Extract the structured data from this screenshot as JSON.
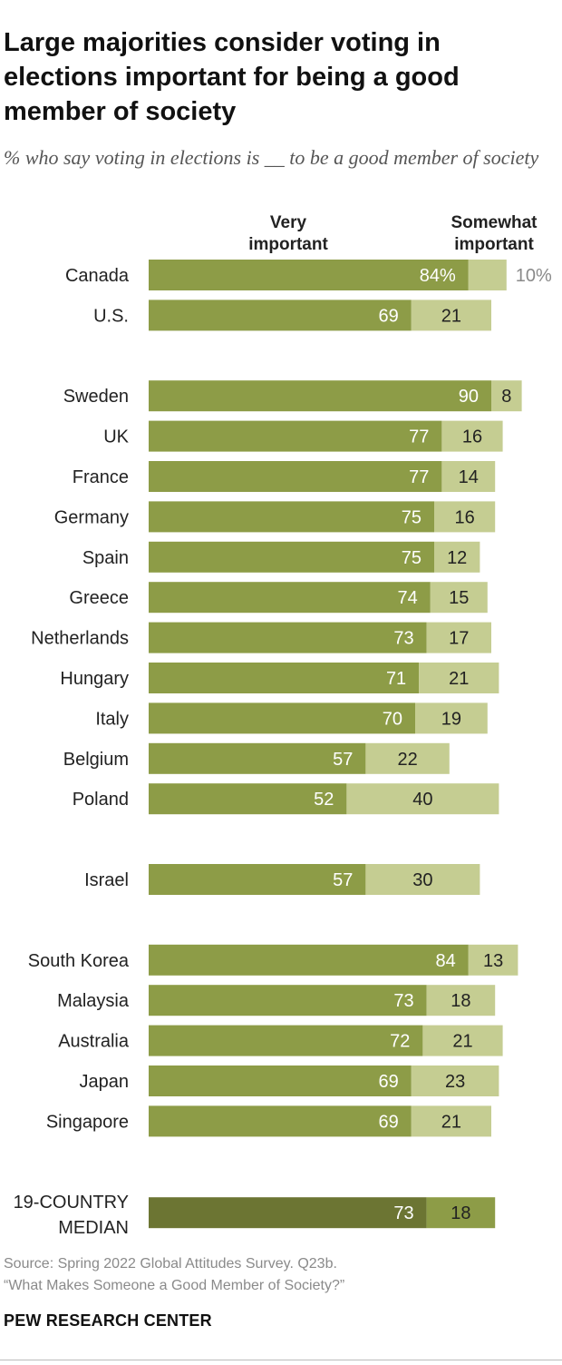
{
  "title": "Large majorities consider voting in elections important for being a good member of society",
  "subtitle": "% who say voting in elections is __ to be a good member of society",
  "source_line1": "Source: Spring 2022 Global Attitudes Survey. Q23b.",
  "source_line2": "“What Makes Someone a Good Member of Society?”",
  "brand": "PEW RESEARCH CENTER",
  "colors": {
    "very": "#8d9c47",
    "somewhat": "#c5cd92",
    "median_very": "#6c7533",
    "median_somewhat": "#8d9c47"
  },
  "chart_data": {
    "type": "bar",
    "orientation": "horizontal",
    "stacked": true,
    "series": [
      {
        "name": "Very important",
        "label_line1": "Very",
        "label_line2": "important"
      },
      {
        "name": "Somewhat important",
        "label_line1": "Somewhat",
        "label_line2": "important"
      }
    ],
    "groups": [
      {
        "rows": [
          {
            "country": "Canada",
            "very": 84,
            "somewhat": 10,
            "very_label": "84%",
            "somewhat_label": "10%",
            "somewhat_outside": true
          },
          {
            "country": "U.S.",
            "very": 69,
            "somewhat": 21,
            "very_label": "69",
            "somewhat_label": "21"
          }
        ]
      },
      {
        "rows": [
          {
            "country": "Sweden",
            "very": 90,
            "somewhat": 8,
            "very_label": "90",
            "somewhat_label": "8"
          },
          {
            "country": "UK",
            "very": 77,
            "somewhat": 16,
            "very_label": "77",
            "somewhat_label": "16"
          },
          {
            "country": "France",
            "very": 77,
            "somewhat": 14,
            "very_label": "77",
            "somewhat_label": "14"
          },
          {
            "country": "Germany",
            "very": 75,
            "somewhat": 16,
            "very_label": "75",
            "somewhat_label": "16"
          },
          {
            "country": "Spain",
            "very": 75,
            "somewhat": 12,
            "very_label": "75",
            "somewhat_label": "12"
          },
          {
            "country": "Greece",
            "very": 74,
            "somewhat": 15,
            "very_label": "74",
            "somewhat_label": "15"
          },
          {
            "country": "Netherlands",
            "very": 73,
            "somewhat": 17,
            "very_label": "73",
            "somewhat_label": "17"
          },
          {
            "country": "Hungary",
            "very": 71,
            "somewhat": 21,
            "very_label": "71",
            "somewhat_label": "21"
          },
          {
            "country": "Italy",
            "very": 70,
            "somewhat": 19,
            "very_label": "70",
            "somewhat_label": "19"
          },
          {
            "country": "Belgium",
            "very": 57,
            "somewhat": 22,
            "very_label": "57",
            "somewhat_label": "22"
          },
          {
            "country": "Poland",
            "very": 52,
            "somewhat": 40,
            "very_label": "52",
            "somewhat_label": "40"
          }
        ]
      },
      {
        "rows": [
          {
            "country": "Israel",
            "very": 57,
            "somewhat": 30,
            "very_label": "57",
            "somewhat_label": "30"
          }
        ]
      },
      {
        "rows": [
          {
            "country": "South Korea",
            "very": 84,
            "somewhat": 13,
            "very_label": "84",
            "somewhat_label": "13"
          },
          {
            "country": "Malaysia",
            "very": 73,
            "somewhat": 18,
            "very_label": "73",
            "somewhat_label": "18"
          },
          {
            "country": "Australia",
            "very": 72,
            "somewhat": 21,
            "very_label": "72",
            "somewhat_label": "21"
          },
          {
            "country": "Japan",
            "very": 69,
            "somewhat": 23,
            "very_label": "69",
            "somewhat_label": "23"
          },
          {
            "country": "Singapore",
            "very": 69,
            "somewhat": 21,
            "very_label": "69",
            "somewhat_label": "21"
          }
        ]
      },
      {
        "median": true,
        "rows": [
          {
            "country_line1": "19-COUNTRY",
            "country_line2": "MEDIAN",
            "very": 73,
            "somewhat": 18,
            "very_label": "73",
            "somewhat_label": "18"
          }
        ]
      }
    ]
  }
}
